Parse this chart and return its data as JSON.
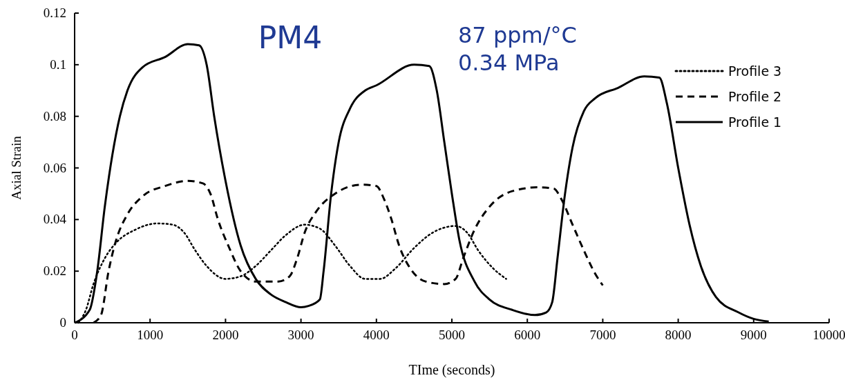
{
  "chart_data": {
    "type": "line",
    "title": "PM4",
    "xlabel": "TIme (seconds)",
    "ylabel": "Axial Strain",
    "annotations": [
      "87 ppm/°C",
      "0.34 MPa"
    ],
    "xlim": [
      0,
      10000
    ],
    "xticks": [
      0,
      1000,
      2000,
      3000,
      4000,
      5000,
      6000,
      7000,
      8000,
      9000,
      10000
    ],
    "ylim": [
      0,
      0.12
    ],
    "yticks": [
      0,
      0.02,
      0.04,
      0.06,
      0.08,
      0.1,
      0.12
    ],
    "grid": false,
    "legend": "top right",
    "marker": "none",
    "series": [
      {
        "name": "Profile 3",
        "color": "#000000",
        "line_style": "dotted",
        "x": [
          50,
          150,
          250,
          400,
          550,
          800,
          1100,
          1300,
          1450,
          1600,
          1750,
          2000,
          2200,
          2400,
          2600,
          2800,
          3050,
          3250,
          3450,
          3650,
          3850,
          4050,
          4250,
          4500,
          4750,
          5050,
          5200,
          5350,
          5550,
          5720
        ],
        "values": [
          0,
          0.005,
          0.015,
          0.025,
          0.031,
          0.036,
          0.0385,
          0.038,
          0.035,
          0.028,
          0.022,
          0.017,
          0.018,
          0.022,
          0.028,
          0.034,
          0.038,
          0.0365,
          0.03,
          0.022,
          0.017,
          0.017,
          0.021,
          0.029,
          0.035,
          0.0375,
          0.035,
          0.028,
          0.021,
          0.017
        ]
      },
      {
        "name": "Profile 2",
        "color": "#000000",
        "line_style": "dashed",
        "x": [
          250,
          350,
          450,
          550,
          700,
          900,
          1200,
          1500,
          1700,
          1800,
          1900,
          2050,
          2200,
          2400,
          2700,
          2850,
          2950,
          3050,
          3200,
          3450,
          3800,
          4000,
          4100,
          4200,
          4300,
          4450,
          4650,
          4900,
          5050,
          5150,
          5300,
          5500,
          5800,
          6150,
          6350,
          6450,
          6600,
          6750,
          6900,
          7000
        ],
        "values": [
          0,
          0.003,
          0.02,
          0.032,
          0.042,
          0.049,
          0.053,
          0.055,
          0.054,
          0.05,
          0.04,
          0.029,
          0.02,
          0.016,
          0.016,
          0.018,
          0.025,
          0.035,
          0.043,
          0.05,
          0.0535,
          0.053,
          0.048,
          0.04,
          0.03,
          0.021,
          0.016,
          0.015,
          0.017,
          0.025,
          0.036,
          0.045,
          0.051,
          0.0525,
          0.052,
          0.048,
          0.038,
          0.028,
          0.019,
          0.0145
        ]
      },
      {
        "name": "Profile 1",
        "color": "#000000",
        "line_style": "solid",
        "x": [
          0,
          200,
          300,
          400,
          500,
          600,
          700,
          900,
          1200,
          1500,
          1650,
          1750,
          1850,
          2000,
          2200,
          2400,
          2600,
          2800,
          3000,
          3100,
          3250,
          3300,
          3400,
          3500,
          3650,
          3850,
          4000,
          4500,
          4700,
          4800,
          4900,
          5000,
          5100,
          5300,
          5500,
          5800,
          6100,
          6250,
          6330,
          6400,
          6500,
          6600,
          6750,
          6900,
          7200,
          7550,
          7750,
          7850,
          8000,
          8150,
          8300,
          8500,
          8800,
          9000,
          9200
        ],
        "values": [
          0,
          0.005,
          0.02,
          0.045,
          0.065,
          0.08,
          0.09,
          0.099,
          0.103,
          0.108,
          0.1075,
          0.1,
          0.08,
          0.055,
          0.03,
          0.017,
          0.011,
          0.008,
          0.006,
          0.0065,
          0.009,
          0.02,
          0.05,
          0.07,
          0.083,
          0.09,
          0.092,
          0.1,
          0.0995,
          0.09,
          0.07,
          0.05,
          0.032,
          0.016,
          0.009,
          0.005,
          0.003,
          0.004,
          0.008,
          0.025,
          0.05,
          0.068,
          0.082,
          0.087,
          0.091,
          0.0955,
          0.095,
          0.085,
          0.06,
          0.038,
          0.022,
          0.01,
          0.004,
          0.0015,
          0.0005
        ]
      }
    ]
  }
}
